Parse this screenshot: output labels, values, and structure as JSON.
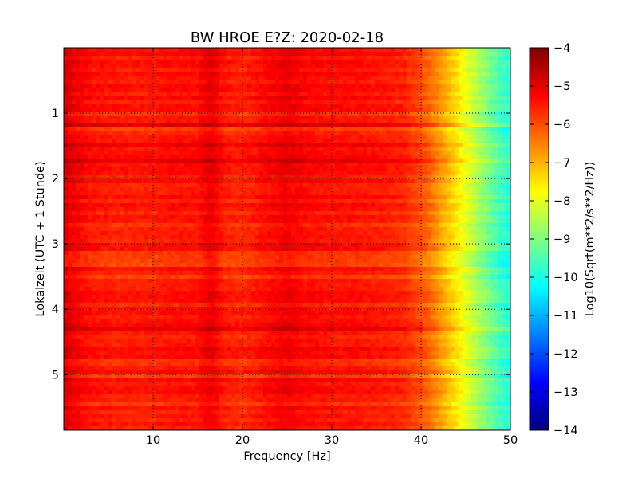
{
  "chart_data": {
    "type": "heatmap",
    "title": "BW HROE E?Z: 2020-02-18",
    "xlabel": "Frequency [Hz]",
    "ylabel": "Lokalzeit (UTC + 1 Stunde)",
    "xlim": [
      0,
      50
    ],
    "ylim": [
      5.85,
      0
    ],
    "x_ticks": [
      10,
      20,
      30,
      40,
      50
    ],
    "y_ticks": [
      1,
      2,
      3,
      4,
      5
    ],
    "grid": true,
    "colormap": "jet",
    "colorbar": {
      "label": "Log10(Sqrt(m**2/s**2/Hz))",
      "range": [
        -14,
        -4
      ],
      "ticks": [
        -4,
        -5,
        -6,
        -7,
        -8,
        -9,
        -10,
        -11,
        -12,
        -13,
        -14
      ]
    },
    "freq_profile": {
      "freq_hz": [
        0,
        1,
        3,
        6,
        10,
        12,
        15,
        16.5,
        18,
        20,
        23,
        25,
        27,
        30,
        33,
        36,
        38,
        40,
        41,
        42,
        43,
        44,
        45,
        46,
        47,
        48,
        49,
        50
      ],
      "log_amplitude": [
        -4.9,
        -5.1,
        -5.4,
        -5.5,
        -5.5,
        -5.4,
        -5.4,
        -5.0,
        -5.5,
        -5.6,
        -5.3,
        -5.1,
        -5.3,
        -5.4,
        -5.4,
        -5.5,
        -5.6,
        -6.0,
        -6.3,
        -6.7,
        -7.1,
        -7.5,
        -8.0,
        -8.4,
        -8.8,
        -9.2,
        -9.6,
        -9.9
      ]
    }
  }
}
